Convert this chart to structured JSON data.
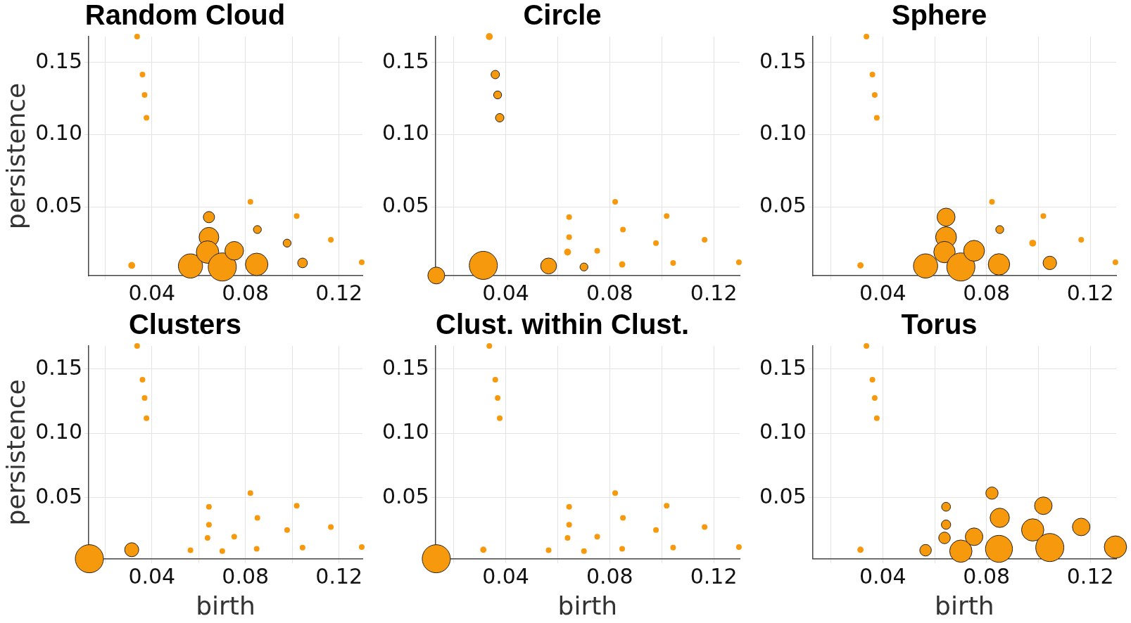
{
  "chart_data": [
    {
      "type": "bubble",
      "title": "Random Cloud",
      "ylabel": "persistence",
      "color": "#f7990c",
      "grid": true,
      "xlim": [
        0.013,
        0.13
      ],
      "ylim": [
        0.0025,
        0.168
      ],
      "xticks": [
        {
          "value": 0.02,
          "label": null
        },
        {
          "value": 0.04,
          "label": "0.04"
        },
        {
          "value": 0.06,
          "label": null
        },
        {
          "value": 0.08,
          "label": "0.08"
        },
        {
          "value": 0.1,
          "label": null
        },
        {
          "value": 0.12,
          "label": "0.12"
        }
      ],
      "yticks": [
        {
          "value": 0.05,
          "label": "0.05"
        },
        {
          "value": 0.1,
          "label": "0.10"
        },
        {
          "value": 0.15,
          "label": "0.15"
        }
      ],
      "x": [
        0.0337,
        0.036,
        0.0369,
        0.0377,
        0.0314,
        0.0565,
        0.0644,
        0.0644,
        0.0638,
        0.0701,
        0.0752,
        0.0821,
        0.0851,
        0.0848,
        0.0978,
        0.1019,
        0.1044,
        0.1165,
        0.1297
      ],
      "values": [
        0.168,
        0.1417,
        0.1276,
        0.1118,
        0.0096,
        0.0092,
        0.043,
        0.0291,
        0.0188,
        0.0085,
        0.0197,
        0.0536,
        0.0344,
        0.0103,
        0.025,
        0.0438,
        0.0113,
        0.0273,
        0.0117
      ],
      "sizes": [
        0.04,
        0.04,
        0.04,
        0.04,
        0.06,
        0.74,
        0.16,
        0.49,
        0.64,
        1,
        0.44,
        0.04,
        0.08,
        0.64,
        0.08,
        0.04,
        0.12,
        0.04,
        0.04
      ]
    },
    {
      "type": "bubble",
      "title": "Circle",
      "color": "#f7990c",
      "grid": true,
      "xlim": [
        0.013,
        0.13
      ],
      "ylim": [
        0.0025,
        0.168
      ],
      "xticks": [
        {
          "value": 0.02,
          "label": null
        },
        {
          "value": 0.04,
          "label": "0.04"
        },
        {
          "value": 0.06,
          "label": null
        },
        {
          "value": 0.08,
          "label": "0.08"
        },
        {
          "value": 0.1,
          "label": null
        },
        {
          "value": 0.12,
          "label": "0.12"
        }
      ],
      "yticks": [
        {
          "value": 0.05,
          "label": "0.05"
        },
        {
          "value": 0.1,
          "label": "0.10"
        },
        {
          "value": 0.15,
          "label": "0.15"
        }
      ],
      "x": [
        0.0133,
        0.0337,
        0.036,
        0.0369,
        0.0377,
        0.0314,
        0.0565,
        0.0644,
        0.0644,
        0.0638,
        0.0701,
        0.0752,
        0.0821,
        0.0851,
        0.0848,
        0.0978,
        0.1019,
        0.1044,
        0.1165,
        0.1297
      ],
      "values": [
        0.0026,
        0.168,
        0.1417,
        0.1276,
        0.1118,
        0.0096,
        0.0092,
        0.043,
        0.0291,
        0.0188,
        0.0085,
        0.0197,
        0.0536,
        0.0344,
        0.0103,
        0.025,
        0.0438,
        0.0113,
        0.0273,
        0.0117
      ],
      "sizes": [
        0.36,
        0.06,
        0.09,
        0.08,
        0.09,
        1,
        0.32,
        0.04,
        0.04,
        0.06,
        0.08,
        0.04,
        0.04,
        0.04,
        0.05,
        0.04,
        0.04,
        0.04,
        0.04,
        0.04
      ]
    },
    {
      "type": "bubble",
      "title": "Sphere",
      "color": "#f7990c",
      "grid": true,
      "xlim": [
        0.013,
        0.13
      ],
      "ylim": [
        0.0025,
        0.168
      ],
      "xticks": [
        {
          "value": 0.02,
          "label": null
        },
        {
          "value": 0.04,
          "label": "0.04"
        },
        {
          "value": 0.06,
          "label": null
        },
        {
          "value": 0.08,
          "label": "0.08"
        },
        {
          "value": 0.1,
          "label": null
        },
        {
          "value": 0.12,
          "label": "0.12"
        }
      ],
      "yticks": [
        {
          "value": 0.05,
          "label": "0.05"
        },
        {
          "value": 0.1,
          "label": "0.10"
        },
        {
          "value": 0.15,
          "label": "0.15"
        }
      ],
      "x": [
        0.0337,
        0.036,
        0.0369,
        0.0377,
        0.0314,
        0.0565,
        0.0644,
        0.0644,
        0.0638,
        0.0701,
        0.0752,
        0.0821,
        0.0851,
        0.0848,
        0.0978,
        0.1019,
        0.1044,
        0.1165,
        0.1297
      ],
      "values": [
        0.168,
        0.1417,
        0.1276,
        0.1118,
        0.0096,
        0.0092,
        0.043,
        0.0291,
        0.0188,
        0.0085,
        0.0197,
        0.0536,
        0.0344,
        0.0103,
        0.025,
        0.0438,
        0.0113,
        0.0273,
        0.0117
      ],
      "sizes": [
        0.04,
        0.04,
        0.04,
        0.04,
        0.05,
        0.74,
        0.41,
        0.55,
        0.58,
        1,
        0.55,
        0.04,
        0.08,
        0.58,
        0.06,
        0.04,
        0.23,
        0.04,
        0.04
      ]
    },
    {
      "type": "bubble",
      "title": "Clusters",
      "xlabel": "birth",
      "ylabel": "persistence",
      "color": "#f7990c",
      "grid": true,
      "xlim": [
        0.013,
        0.13
      ],
      "ylim": [
        0.0025,
        0.168
      ],
      "xticks": [
        {
          "value": 0.02,
          "label": null
        },
        {
          "value": 0.04,
          "label": "0.04"
        },
        {
          "value": 0.06,
          "label": null
        },
        {
          "value": 0.08,
          "label": "0.08"
        },
        {
          "value": 0.1,
          "label": null
        },
        {
          "value": 0.12,
          "label": "0.12"
        }
      ],
      "yticks": [
        {
          "value": 0.05,
          "label": "0.05"
        },
        {
          "value": 0.1,
          "label": "0.10"
        },
        {
          "value": 0.15,
          "label": "0.15"
        }
      ],
      "x": [
        0.0133,
        0.0337,
        0.036,
        0.0369,
        0.0377,
        0.0314,
        0.0565,
        0.0644,
        0.0644,
        0.0638,
        0.0701,
        0.0752,
        0.0821,
        0.0851,
        0.0848,
        0.0978,
        0.1019,
        0.1044,
        0.1165,
        0.1297
      ],
      "values": [
        0.0026,
        0.168,
        0.1417,
        0.1276,
        0.1118,
        0.0096,
        0.0092,
        0.043,
        0.0291,
        0.0188,
        0.0085,
        0.0197,
        0.0536,
        0.0344,
        0.0103,
        0.025,
        0.0438,
        0.0113,
        0.0273,
        0.0117
      ],
      "sizes": [
        1,
        0.04,
        0.04,
        0.04,
        0.04,
        0.25,
        0.04,
        0.04,
        0.04,
        0.04,
        0.04,
        0.04,
        0.04,
        0.04,
        0.04,
        0.04,
        0.04,
        0.04,
        0.04,
        0.04
      ]
    },
    {
      "type": "bubble",
      "title": "Clust. within Clust.",
      "xlabel": "birth",
      "color": "#f7990c",
      "grid": true,
      "xlim": [
        0.013,
        0.13
      ],
      "ylim": [
        0.0025,
        0.168
      ],
      "xticks": [
        {
          "value": 0.02,
          "label": null
        },
        {
          "value": 0.04,
          "label": "0.04"
        },
        {
          "value": 0.06,
          "label": null
        },
        {
          "value": 0.08,
          "label": "0.08"
        },
        {
          "value": 0.1,
          "label": null
        },
        {
          "value": 0.12,
          "label": "0.12"
        }
      ],
      "yticks": [
        {
          "value": 0.05,
          "label": "0.05"
        },
        {
          "value": 0.1,
          "label": "0.10"
        },
        {
          "value": 0.15,
          "label": "0.15"
        }
      ],
      "x": [
        0.0133,
        0.0337,
        0.036,
        0.0369,
        0.0377,
        0.0314,
        0.0565,
        0.0644,
        0.0644,
        0.0638,
        0.0701,
        0.0752,
        0.0821,
        0.0851,
        0.0848,
        0.0978,
        0.1019,
        0.1044,
        0.1165,
        0.1297
      ],
      "values": [
        0.0026,
        0.168,
        0.1417,
        0.1276,
        0.1118,
        0.0096,
        0.0092,
        0.043,
        0.0291,
        0.0188,
        0.0085,
        0.0197,
        0.0536,
        0.0344,
        0.0103,
        0.025,
        0.0438,
        0.0113,
        0.0273,
        0.0117
      ],
      "sizes": [
        1,
        0.04,
        0.04,
        0.04,
        0.04,
        0.05,
        0.04,
        0.04,
        0.04,
        0.04,
        0.04,
        0.04,
        0.04,
        0.04,
        0.04,
        0.04,
        0.04,
        0.04,
        0.04,
        0.04
      ]
    },
    {
      "type": "bubble",
      "title": "Torus",
      "xlabel": "birth",
      "color": "#f7990c",
      "grid": true,
      "xlim": [
        0.013,
        0.13
      ],
      "ylim": [
        0.0025,
        0.168
      ],
      "xticks": [
        {
          "value": 0.02,
          "label": null
        },
        {
          "value": 0.04,
          "label": "0.04"
        },
        {
          "value": 0.06,
          "label": null
        },
        {
          "value": 0.08,
          "label": "0.08"
        },
        {
          "value": 0.1,
          "label": null
        },
        {
          "value": 0.12,
          "label": "0.12"
        }
      ],
      "yticks": [
        {
          "value": 0.05,
          "label": "0.05"
        },
        {
          "value": 0.1,
          "label": "0.10"
        },
        {
          "value": 0.15,
          "label": "0.15"
        }
      ],
      "x": [
        0.0337,
        0.036,
        0.0369,
        0.0377,
        0.0314,
        0.0565,
        0.0644,
        0.0644,
        0.0638,
        0.0701,
        0.0752,
        0.0821,
        0.0851,
        0.0848,
        0.0978,
        0.1019,
        0.1044,
        0.1165,
        0.1297
      ],
      "values": [
        0.168,
        0.1417,
        0.1276,
        0.1118,
        0.0096,
        0.0092,
        0.043,
        0.0291,
        0.0188,
        0.0085,
        0.0197,
        0.0536,
        0.0344,
        0.0103,
        0.025,
        0.0438,
        0.0113,
        0.0273,
        0.0117
      ],
      "sizes": [
        0.04,
        0.04,
        0.04,
        0.04,
        0.05,
        0.17,
        0.1,
        0.11,
        0.17,
        0.63,
        0.39,
        0.19,
        0.47,
        0.92,
        0.63,
        0.39,
        1,
        0.39,
        0.63
      ]
    }
  ]
}
